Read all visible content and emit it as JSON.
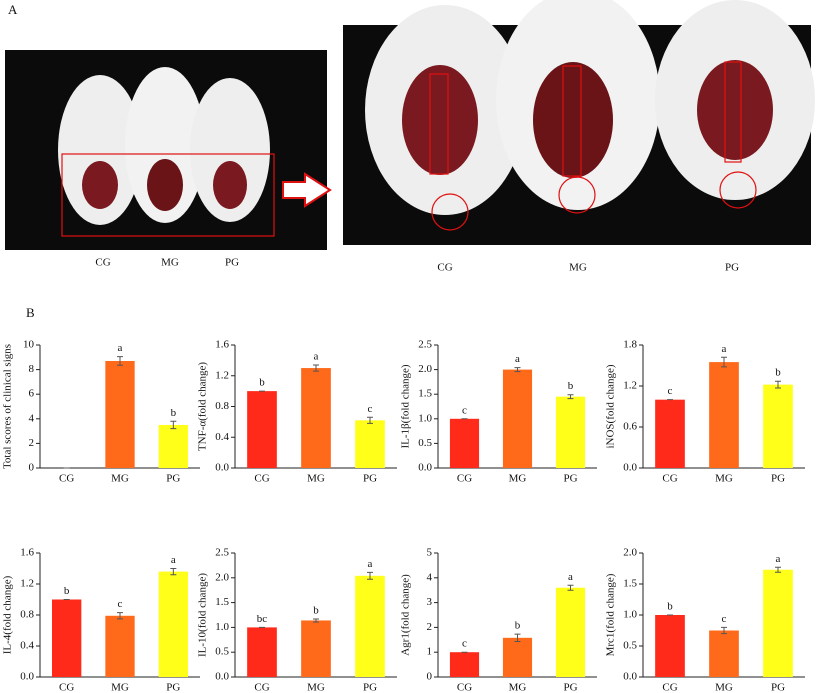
{
  "panel_labels": [
    "A",
    "B"
  ],
  "photo_labels": {
    "left": [
      "CG",
      "MG",
      "PG"
    ],
    "right": [
      "CG",
      "MG",
      "PG"
    ]
  },
  "chart_data": [
    {
      "type": "bar",
      "ylabel": "Total scores of clinical signs",
      "categories": [
        "CG",
        "MG",
        "PG"
      ],
      "values": [
        0,
        8.7,
        3.5
      ],
      "errors": [
        0,
        0.35,
        0.3
      ],
      "annotations": [
        null,
        "a",
        "b"
      ],
      "colors": [
        "#ff2a1a",
        "#ff6a1a",
        "#ffff1a"
      ],
      "ylim": [
        0,
        10
      ],
      "yticks": [
        0,
        2,
        4,
        6,
        8,
        10
      ]
    },
    {
      "type": "bar",
      "ylabel": "TNF-α(fold change)",
      "categories": [
        "CG",
        "MG",
        "PG"
      ],
      "values": [
        1.0,
        1.3,
        0.62
      ],
      "errors": [
        0,
        0.04,
        0.04
      ],
      "annotations": [
        "b",
        "a",
        "c"
      ],
      "colors": [
        "#ff2a1a",
        "#ff6a1a",
        "#ffff1a"
      ],
      "ylim": [
        0,
        1.6
      ],
      "yticks": [
        {
          "value": 0,
          "label": "0.0"
        },
        0.4,
        0.8,
        1.2,
        1.6
      ]
    },
    {
      "type": "bar",
      "ylabel": "IL-1β(fold change)",
      "categories": [
        "CG",
        "MG",
        "PG"
      ],
      "values": [
        1.0,
        2.0,
        1.45
      ],
      "errors": [
        0,
        0.04,
        0.04
      ],
      "annotations": [
        "c",
        "a",
        "b"
      ],
      "colors": [
        "#ff2a1a",
        "#ff6a1a",
        "#ffff1a"
      ],
      "ylim": [
        0,
        2.5
      ],
      "yticks": [
        {
          "value": 0,
          "label": "0.0"
        },
        0.5,
        {
          "value": 1,
          "label": "1.0"
        },
        1.5,
        {
          "value": 2,
          "label": "2.0"
        },
        2.5
      ]
    },
    {
      "type": "bar",
      "ylabel": "iNOS(fold change)",
      "categories": [
        "CG",
        "MG",
        "PG"
      ],
      "values": [
        1.0,
        1.55,
        1.22
      ],
      "errors": [
        0,
        0.07,
        0.05
      ],
      "annotations": [
        "c",
        "a",
        "b"
      ],
      "colors": [
        "#ff2a1a",
        "#ff6a1a",
        "#ffff1a"
      ],
      "ylim": [
        0,
        1.8
      ],
      "yticks": [
        {
          "value": 0,
          "label": "0.0"
        },
        0.6,
        1.2,
        1.8
      ]
    },
    {
      "type": "bar",
      "ylabel": "IL-4(fold change)",
      "categories": [
        "CG",
        "MG",
        "PG"
      ],
      "values": [
        1.0,
        0.79,
        1.36
      ],
      "errors": [
        0,
        0.04,
        0.04
      ],
      "annotations": [
        "b",
        "c",
        "a"
      ],
      "colors": [
        "#ff2a1a",
        "#ff6a1a",
        "#ffff1a"
      ],
      "ylim": [
        0,
        1.6
      ],
      "yticks": [
        {
          "value": 0,
          "label": "0.0"
        },
        0.4,
        0.8,
        1.2,
        1.6
      ]
    },
    {
      "type": "bar",
      "ylabel": "IL-10(fold change)",
      "categories": [
        "CG",
        "MG",
        "PG"
      ],
      "values": [
        1.0,
        1.14,
        2.04
      ],
      "errors": [
        0,
        0.03,
        0.07
      ],
      "annotations": [
        "bc",
        "b",
        "a"
      ],
      "colors": [
        "#ff2a1a",
        "#ff6a1a",
        "#ffff1a"
      ],
      "ylim": [
        0,
        2.5
      ],
      "yticks": [
        {
          "value": 0,
          "label": "0.0"
        },
        0.5,
        {
          "value": 1,
          "label": "1.0"
        },
        1.5,
        {
          "value": 2,
          "label": "2.0"
        },
        2.5
      ]
    },
    {
      "type": "bar",
      "ylabel": "Agr1(fold change)",
      "categories": [
        "CG",
        "MG",
        "PG"
      ],
      "values": [
        1.0,
        1.58,
        3.6
      ],
      "errors": [
        0,
        0.15,
        0.1
      ],
      "annotations": [
        "c",
        "b",
        "a"
      ],
      "colors": [
        "#ff2a1a",
        "#ff6a1a",
        "#ffff1a"
      ],
      "ylim": [
        0,
        5
      ],
      "yticks": [
        0,
        1,
        2,
        3,
        4,
        5
      ]
    },
    {
      "type": "bar",
      "ylabel": "Mrc1(fold change)",
      "categories": [
        "CG",
        "MG",
        "PG"
      ],
      "values": [
        1.0,
        0.75,
        1.73
      ],
      "errors": [
        0,
        0.05,
        0.04
      ],
      "annotations": [
        "b",
        "c",
        "a"
      ],
      "colors": [
        "#ff2a1a",
        "#ff6a1a",
        "#ffff1a"
      ],
      "ylim": [
        0,
        2.0
      ],
      "yticks": [
        {
          "value": 0,
          "label": "0.0"
        },
        0.5,
        {
          "value": 1,
          "label": "1.0"
        },
        1.5,
        {
          "value": 2,
          "label": "2.0"
        }
      ]
    }
  ]
}
